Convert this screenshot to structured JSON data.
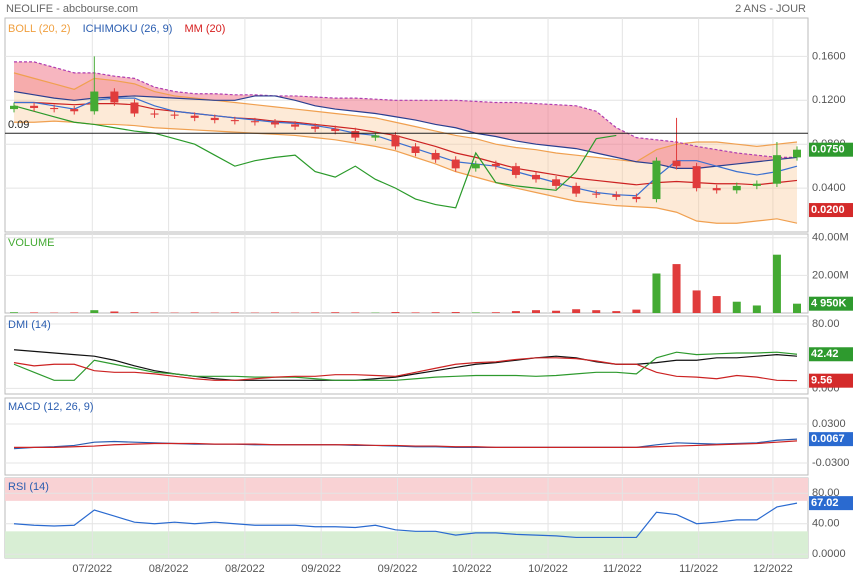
{
  "header": {
    "title": "NEOLIFE - abcbourse.com",
    "period": "2 ANS - JOUR"
  },
  "chart_data": [
    {
      "type": "candlestick",
      "legend": [
        {
          "name": "BOLL (20, 2)",
          "color": "#f0a040"
        },
        {
          "name": "ICHIMOKU (26, 9)",
          "color": "#2a5db0"
        },
        {
          "name": "MM (20)",
          "color": "#d62020"
        }
      ],
      "up_color": "#44aa33",
      "down_color": "#e03c3c",
      "xlim": [
        0,
        39
      ],
      "ylim": [
        0,
        0.195
      ],
      "yticks": [
        {
          "value": 0.04,
          "label": "0.0400"
        },
        {
          "value": 0.08,
          "label": "0.0800"
        },
        {
          "value": 0.12,
          "label": "0.1200"
        },
        {
          "value": 0.16,
          "label": "0.1600"
        }
      ],
      "hline": 0.09,
      "open": [
        0.112,
        0.115,
        0.113,
        0.112,
        0.11,
        0.128,
        0.118,
        0.108,
        0.107,
        0.106,
        0.104,
        0.102,
        0.101,
        0.1,
        0.098,
        0.096,
        0.094,
        0.092,
        0.086,
        0.088,
        0.078,
        0.072,
        0.066,
        0.058,
        0.062,
        0.06,
        0.052,
        0.048,
        0.042,
        0.035,
        0.034,
        0.032,
        0.03,
        0.065,
        0.06,
        0.04,
        0.038,
        0.042,
        0.044,
        0.068
      ],
      "high": [
        0.118,
        0.118,
        0.116,
        0.115,
        0.16,
        0.131,
        0.121,
        0.111,
        0.11,
        0.109,
        0.107,
        0.105,
        0.104,
        0.103,
        0.101,
        0.099,
        0.097,
        0.095,
        0.091,
        0.091,
        0.081,
        0.075,
        0.069,
        0.065,
        0.065,
        0.063,
        0.055,
        0.051,
        0.045,
        0.038,
        0.037,
        0.035,
        0.068,
        0.104,
        0.063,
        0.043,
        0.045,
        0.047,
        0.082,
        0.078
      ],
      "low": [
        0.109,
        0.11,
        0.109,
        0.107,
        0.107,
        0.115,
        0.105,
        0.104,
        0.103,
        0.101,
        0.099,
        0.098,
        0.097,
        0.095,
        0.093,
        0.091,
        0.089,
        0.083,
        0.083,
        0.075,
        0.069,
        0.063,
        0.055,
        0.055,
        0.057,
        0.049,
        0.045,
        0.039,
        0.032,
        0.031,
        0.029,
        0.027,
        0.027,
        0.057,
        0.037,
        0.035,
        0.035,
        0.039,
        0.041,
        0.065
      ],
      "close": [
        0.115,
        0.113,
        0.112,
        0.11,
        0.128,
        0.118,
        0.108,
        0.107,
        0.106,
        0.104,
        0.102,
        0.101,
        0.1,
        0.098,
        0.096,
        0.094,
        0.092,
        0.086,
        0.088,
        0.078,
        0.072,
        0.066,
        0.058,
        0.062,
        0.06,
        0.052,
        0.048,
        0.042,
        0.035,
        0.034,
        0.032,
        0.03,
        0.065,
        0.06,
        0.04,
        0.038,
        0.042,
        0.044,
        0.07,
        0.075
      ],
      "lines": [
        {
          "color": "#f0a050",
          "values": [
            0.145,
            0.14,
            0.135,
            0.13,
            0.14,
            0.138,
            0.135,
            0.128,
            0.124,
            0.122,
            0.12,
            0.118,
            0.116,
            0.114,
            0.112,
            0.11,
            0.108,
            0.106,
            0.104,
            0.1,
            0.096,
            0.092,
            0.088,
            0.085,
            0.08,
            0.077,
            0.075,
            0.072,
            0.07,
            0.068,
            0.066,
            0.064,
            0.075,
            0.08,
            0.082,
            0.082,
            0.08,
            0.078,
            0.08,
            0.082
          ]
        },
        {
          "color": "#f0a050",
          "values": [
            0.1,
            0.1,
            0.101,
            0.1,
            0.098,
            0.098,
            0.097,
            0.095,
            0.094,
            0.093,
            0.092,
            0.091,
            0.09,
            0.089,
            0.088,
            0.086,
            0.084,
            0.081,
            0.078,
            0.074,
            0.068,
            0.062,
            0.055,
            0.05,
            0.045,
            0.04,
            0.036,
            0.032,
            0.028,
            0.026,
            0.024,
            0.023,
            0.022,
            0.018,
            0.01,
            0.008,
            0.008,
            0.01,
            0.012,
            0.008
          ]
        },
        {
          "color": "#cc2222",
          "values": [
            0.118,
            0.118,
            0.117,
            0.116,
            0.117,
            0.117,
            0.116,
            0.112,
            0.11,
            0.108,
            0.106,
            0.104,
            0.103,
            0.101,
            0.1,
            0.098,
            0.096,
            0.094,
            0.091,
            0.088,
            0.083,
            0.078,
            0.072,
            0.068,
            0.063,
            0.058,
            0.055,
            0.052,
            0.049,
            0.047,
            0.045,
            0.043,
            0.045,
            0.046,
            0.045,
            0.044,
            0.044,
            0.043,
            0.045,
            0.047
          ]
        },
        {
          "color": "#b03cb0",
          "dashed": true,
          "values": [
            0.155,
            0.155,
            0.15,
            0.145,
            0.145,
            0.142,
            0.14,
            0.132,
            0.128,
            0.126,
            0.126,
            0.125,
            0.125,
            0.124,
            0.124,
            0.123,
            0.122,
            0.122,
            0.121,
            0.12,
            0.12,
            0.12,
            0.12,
            0.119,
            0.118,
            0.118,
            0.117,
            0.116,
            0.115,
            0.11,
            0.095,
            0.086,
            0.084,
            0.082,
            0.078,
            0.075,
            0.072,
            0.07,
            0.068,
            0.068
          ]
        },
        {
          "color": "#2a3f90",
          "values": [
            0.128,
            0.125,
            0.122,
            0.12,
            0.122,
            0.123,
            0.124,
            0.123,
            0.122,
            0.121,
            0.12,
            0.12,
            0.124,
            0.124,
            0.12,
            0.115,
            0.112,
            0.11,
            0.108,
            0.105,
            0.102,
            0.098,
            0.095,
            0.09,
            0.087,
            0.083,
            0.08,
            0.078,
            0.076,
            0.072,
            0.068,
            0.064,
            0.062,
            0.058,
            0.058,
            0.06,
            0.062,
            0.064,
            0.066,
            0.068
          ]
        },
        {
          "color": "#3a6fd0",
          "values": [
            0.118,
            0.118,
            0.115,
            0.112,
            0.12,
            0.122,
            0.122,
            0.115,
            0.11,
            0.108,
            0.106,
            0.104,
            0.102,
            0.1,
            0.099,
            0.097,
            0.094,
            0.09,
            0.088,
            0.082,
            0.076,
            0.07,
            0.064,
            0.062,
            0.06,
            0.055,
            0.05,
            0.045,
            0.04,
            0.036,
            0.034,
            0.033,
            0.05,
            0.065,
            0.065,
            0.06,
            0.055,
            0.052,
            0.055,
            0.06
          ]
        },
        {
          "color": "#2a9a2a",
          "values": [
            0.115,
            0.11,
            0.105,
            0.1,
            0.098,
            0.095,
            0.092,
            0.09,
            0.085,
            0.08,
            0.07,
            0.06,
            0.065,
            0.068,
            0.07,
            0.055,
            0.05,
            0.06,
            0.048,
            0.04,
            0.03,
            0.025,
            0.022,
            0.072,
            0.045,
            0.042,
            0.04,
            0.038,
            0.055,
            0.085,
            0.088,
            null,
            null,
            null,
            null,
            null,
            null,
            null,
            null,
            null
          ]
        }
      ],
      "last_labels": [
        {
          "value": 0.075,
          "label": "0.0750",
          "color": "#2e9a2e"
        },
        {
          "value": 0.02,
          "label": "0.0200",
          "color": "#d42a2a"
        }
      ]
    },
    {
      "type": "bar",
      "title": "VOLUME",
      "title_color": "#44aa33",
      "xlim": [
        0,
        39
      ],
      "ylim": [
        0,
        42000000
      ],
      "yticks": [
        {
          "value": 20000000,
          "label": "20.00M"
        },
        {
          "value": 40000000,
          "label": "40.00M"
        }
      ],
      "values": [
        400000,
        300000,
        200000,
        300000,
        1500000,
        800000,
        400000,
        300000,
        200000,
        300000,
        200000,
        300000,
        200000,
        300000,
        200000,
        300000,
        400000,
        300000,
        200000,
        500000,
        300000,
        400000,
        500000,
        300000,
        400000,
        1000000,
        1500000,
        1200000,
        2000000,
        1500000,
        1000000,
        1800000,
        21000000,
        26000000,
        12000000,
        9000000,
        6000000,
        4000000,
        31000000,
        4950000
      ],
      "last_labels": [
        {
          "value": 4950000,
          "label": "4 950K",
          "color": "#2e9a2e"
        }
      ]
    },
    {
      "type": "line",
      "title": "DMI (14)",
      "title_color": "#2a5db0",
      "xlim": [
        0,
        39
      ],
      "ylim": [
        -7,
        90
      ],
      "yticks": [
        {
          "value": 0,
          "label": "0.000"
        },
        {
          "value": 80,
          "label": "80.00"
        }
      ],
      "series": [
        {
          "color": "#111111",
          "values": [
            48,
            46,
            44,
            42,
            40,
            35,
            28,
            22,
            18,
            15,
            12,
            10,
            10,
            10,
            10,
            10,
            10,
            10,
            12,
            14,
            18,
            22,
            26,
            30,
            32,
            35,
            38,
            40,
            38,
            33,
            30,
            30,
            32,
            35,
            35,
            38,
            38,
            40,
            42,
            40
          ]
        },
        {
          "color": "#2e9a2e",
          "values": [
            30,
            20,
            10,
            10,
            35,
            30,
            25,
            20,
            18,
            15,
            15,
            15,
            14,
            14,
            14,
            12,
            10,
            10,
            10,
            10,
            12,
            14,
            15,
            16,
            16,
            16,
            15,
            16,
            18,
            20,
            20,
            18,
            38,
            45,
            42,
            43,
            44,
            44,
            45,
            42.42
          ]
        },
        {
          "color": "#cc2222",
          "values": [
            32,
            28,
            30,
            30,
            22,
            20,
            20,
            18,
            15,
            12,
            10,
            10,
            12,
            14,
            15,
            15,
            17,
            17,
            16,
            15,
            20,
            25,
            30,
            32,
            33,
            36,
            38,
            38,
            37,
            34,
            30,
            30,
            20,
            15,
            14,
            12,
            16,
            14,
            10,
            9.56
          ]
        }
      ],
      "last_labels": [
        {
          "value": 42.42,
          "label": "42.42",
          "color": "#2e9a2e"
        },
        {
          "value": 9.56,
          "label": "9.56",
          "color": "#d42a2a"
        }
      ]
    },
    {
      "type": "line",
      "title": "MACD (12, 26, 9)",
      "title_color": "#2a5db0",
      "xlim": [
        0,
        39
      ],
      "ylim": [
        -0.0485,
        0.07
      ],
      "yticks": [
        {
          "value": -0.03,
          "label": "-0.0300"
        },
        {
          "value": 0.03,
          "label": "0.0300"
        }
      ],
      "series": [
        {
          "color": "#2a5db0",
          "values": [
            -0.008,
            -0.006,
            -0.005,
            -0.003,
            0.002,
            0.003,
            0.002,
            0.001,
            0,
            -0.001,
            -0.001,
            -0.001,
            -0.002,
            -0.002,
            -0.002,
            -0.002,
            -0.002,
            -0.003,
            -0.003,
            -0.004,
            -0.005,
            -0.005,
            -0.006,
            -0.006,
            -0.006,
            -0.006,
            -0.006,
            -0.006,
            -0.006,
            -0.006,
            -0.006,
            -0.006,
            -0.002,
            0.001,
            0,
            -0.001,
            0,
            0.001,
            0.005,
            0.0067
          ]
        },
        {
          "color": "#cc2222",
          "values": [
            -0.006,
            -0.006,
            -0.006,
            -0.005,
            -0.004,
            -0.002,
            -0.001,
            0,
            0,
            0,
            -0.001,
            -0.001,
            -0.001,
            -0.002,
            -0.002,
            -0.002,
            -0.002,
            -0.002,
            -0.003,
            -0.003,
            -0.004,
            -0.004,
            -0.005,
            -0.005,
            -0.006,
            -0.006,
            -0.006,
            -0.006,
            -0.006,
            -0.006,
            -0.006,
            -0.006,
            -0.005,
            -0.004,
            -0.003,
            -0.002,
            -0.001,
            0,
            0.002,
            0.004
          ]
        }
      ],
      "last_labels": [
        {
          "value": 0.0067,
          "label": "0.0067",
          "color": "#2a6ad0"
        }
      ]
    },
    {
      "type": "line",
      "title": "RSI (14)",
      "title_color": "#2a5db0",
      "xlim": [
        0,
        39
      ],
      "ylim": [
        -5,
        100
      ],
      "bands": [
        {
          "from": 70,
          "to": 100,
          "color": "#f9d2d4"
        },
        {
          "from": -5,
          "to": 30,
          "color": "#d8eed4"
        }
      ],
      "yticks": [
        {
          "value": 0,
          "label": "0.0000"
        },
        {
          "value": 40,
          "label": "40.00"
        },
        {
          "value": 80,
          "label": "80.00"
        }
      ],
      "xticks": [
        {
          "value": 3.9,
          "label": "07/2022"
        },
        {
          "value": 7.7,
          "label": "08/2022"
        },
        {
          "value": 11.5,
          "label": "08/2022"
        },
        {
          "value": 15.3,
          "label": "09/2022"
        },
        {
          "value": 19.1,
          "label": "09/2022"
        },
        {
          "value": 22.8,
          "label": "10/2022"
        },
        {
          "value": 26.6,
          "label": "10/2022"
        },
        {
          "value": 30.3,
          "label": "11/2022"
        },
        {
          "value": 34.1,
          "label": "11/2022"
        },
        {
          "value": 37.8,
          "label": "12/2022"
        }
      ],
      "series": [
        {
          "color": "#2a6ad0",
          "values": [
            40,
            38,
            37,
            38,
            58,
            50,
            42,
            40,
            42,
            40,
            42,
            40,
            38,
            38,
            38,
            36,
            36,
            35,
            38,
            32,
            30,
            30,
            25,
            28,
            28,
            26,
            25,
            24,
            22,
            22,
            22,
            22,
            55,
            52,
            40,
            42,
            45,
            45,
            62,
            67.02
          ]
        }
      ],
      "last_labels": [
        {
          "value": 67.02,
          "label": "67.02",
          "color": "#2a6ad0"
        }
      ]
    }
  ]
}
